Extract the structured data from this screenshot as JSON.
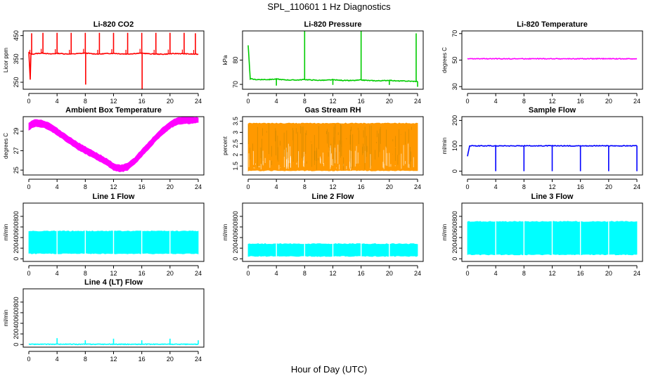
{
  "figure": {
    "title": "SPL_110601  1 Hz Diagnostics",
    "xlabel": "Hour of Day (UTC)"
  },
  "chart_data": [
    {
      "id": "co2",
      "type": "line",
      "title": "Li-820 CO2",
      "ylabel": "Licor ppm",
      "xlim": [
        0,
        24
      ],
      "ylim": [
        220,
        470
      ],
      "yticks": [
        250,
        350,
        450
      ],
      "xticks": [
        0,
        4,
        8,
        12,
        16,
        20,
        24
      ],
      "color": "#ff0000",
      "series": [
        {
          "x": [
            0,
            0.2,
            0.3,
            0.5,
            1,
            2,
            3,
            4,
            5,
            6,
            7,
            8,
            9,
            10,
            11,
            12,
            13,
            14,
            15,
            16,
            17,
            18,
            19,
            20,
            21,
            22,
            23,
            24
          ],
          "values": [
            380,
            260,
            372,
            370,
            373,
            375,
            371,
            374,
            372,
            371,
            373,
            375,
            372,
            371,
            373,
            374,
            372,
            371,
            373,
            375,
            372,
            371,
            370,
            372,
            373,
            372,
            371,
            370
          ]
        }
      ],
      "spikes": [
        {
          "x": 0.4,
          "value": 460
        },
        {
          "x": 2.0,
          "value": 462
        },
        {
          "x": 4.0,
          "value": 462
        },
        {
          "x": 6.0,
          "value": 462
        },
        {
          "x": 8.0,
          "value": 462
        },
        {
          "x": 8.05,
          "value": 240
        },
        {
          "x": 10.0,
          "value": 462
        },
        {
          "x": 12.0,
          "value": 462
        },
        {
          "x": 14.0,
          "value": 462
        },
        {
          "x": 16.0,
          "value": 462
        },
        {
          "x": 16.05,
          "value": 220
        },
        {
          "x": 18.0,
          "value": 462
        },
        {
          "x": 20.0,
          "value": 462
        },
        {
          "x": 22.0,
          "value": 462
        },
        {
          "x": 23.6,
          "value": 460
        }
      ]
    },
    {
      "id": "pressure",
      "type": "line",
      "title": "Li-820 Pressure",
      "ylabel": "kPa",
      "xlim": [
        0,
        24
      ],
      "ylim": [
        68,
        92
      ],
      "yticks": [
        70,
        80
      ],
      "xticks": [
        0,
        4,
        8,
        12,
        16,
        20,
        24
      ],
      "color": "#00cc00",
      "series": [
        {
          "x": [
            0,
            0.3,
            1,
            2,
            3,
            4,
            5,
            6,
            7,
            8,
            9,
            10,
            11,
            12,
            13,
            14,
            15,
            16,
            17,
            18,
            19,
            20,
            21,
            22,
            23,
            24
          ],
          "values": [
            86,
            72.3,
            72.0,
            72.0,
            72.0,
            72.2,
            71.9,
            71.8,
            71.8,
            72.0,
            71.8,
            71.7,
            71.7,
            71.9,
            71.7,
            71.6,
            71.6,
            71.8,
            71.6,
            71.5,
            71.5,
            71.7,
            71.4,
            71.4,
            71.3,
            71.2
          ]
        }
      ],
      "spikes": [
        {
          "x": 8.0,
          "value": 92
        },
        {
          "x": 16.0,
          "value": 92
        },
        {
          "x": 23.8,
          "value": 91
        },
        {
          "x": 4.0,
          "value": 69.5
        },
        {
          "x": 12.0,
          "value": 69.8
        },
        {
          "x": 20.0,
          "value": 69.8
        },
        {
          "x": 24.0,
          "value": 69
        }
      ]
    },
    {
      "id": "licor-temp",
      "type": "line",
      "title": "Li-820 Temperature",
      "ylabel": "degrees C",
      "xlim": [
        0,
        24
      ],
      "ylim": [
        28,
        72
      ],
      "yticks": [
        30,
        50,
        70
      ],
      "xticks": [
        0,
        4,
        8,
        12,
        16,
        20,
        24
      ],
      "color": "#ff00ff",
      "series": [
        {
          "x": [
            0,
            24
          ],
          "values": [
            51,
            51
          ]
        }
      ]
    },
    {
      "id": "ambient-temp",
      "type": "area",
      "title": "Ambient Box Temperature",
      "ylabel": "degrees C",
      "xlim": [
        0,
        24
      ],
      "ylim": [
        24.5,
        30.5
      ],
      "yticks": [
        25,
        27,
        29
      ],
      "xticks": [
        0,
        4,
        8,
        12,
        16,
        20,
        24
      ],
      "color": "#ff00ff",
      "series": [
        {
          "x": [
            0,
            0.5,
            1,
            2,
            3,
            4,
            5,
            6,
            7,
            8,
            9,
            10,
            11,
            12,
            13,
            14,
            15,
            16,
            17,
            18,
            19,
            20,
            21,
            22,
            23,
            24
          ],
          "low": [
            29.1,
            29.4,
            29.5,
            29.4,
            29.1,
            28.6,
            28.1,
            27.6,
            27.1,
            26.7,
            26.3,
            25.9,
            25.5,
            25.0,
            24.8,
            25.0,
            25.6,
            26.4,
            27.2,
            28.0,
            28.7,
            29.3,
            29.7,
            29.8,
            29.8,
            29.9
          ],
          "high": [
            29.8,
            30.1,
            30.2,
            30.1,
            29.8,
            29.3,
            28.8,
            28.3,
            27.8,
            27.4,
            27.0,
            26.6,
            26.2,
            25.7,
            25.5,
            25.7,
            26.3,
            27.1,
            27.9,
            28.7,
            29.4,
            30.0,
            30.4,
            30.5,
            30.5,
            30.4
          ]
        }
      ]
    },
    {
      "id": "gas-rh",
      "type": "area",
      "title": "Gas Stream RH",
      "ylabel": "percent",
      "xlim": [
        0,
        24
      ],
      "ylim": [
        1.1,
        3.7
      ],
      "yticks": [
        1.5,
        2.0,
        2.5,
        3.0,
        3.5
      ],
      "xticks": [
        0,
        4,
        8,
        12,
        16,
        20,
        24
      ],
      "color": "#ff9900",
      "series": [
        {
          "x": [
            0,
            24
          ],
          "low": [
            1.3,
            1.3
          ],
          "high": [
            3.4,
            3.4
          ]
        }
      ]
    },
    {
      "id": "sample-flow",
      "type": "line",
      "title": "Sample Flow",
      "ylabel": "ml/min",
      "xlim": [
        0,
        24
      ],
      "ylim": [
        -15,
        215
      ],
      "yticks": [
        0,
        100,
        200
      ],
      "xticks": [
        0,
        4,
        8,
        12,
        16,
        20,
        24
      ],
      "color": "#0000ff",
      "series": [
        {
          "x": [
            0,
            0.3,
            1,
            2,
            3,
            4,
            5,
            6,
            7,
            8,
            9,
            10,
            11,
            12,
            13,
            14,
            15,
            16,
            17,
            18,
            19,
            20,
            21,
            22,
            23,
            24
          ],
          "values": [
            60,
            100,
            100,
            100,
            100,
            100,
            100,
            100,
            100,
            100,
            100,
            100,
            100,
            100,
            100,
            100,
            100,
            100,
            100,
            100,
            100,
            100,
            100,
            100,
            100,
            100
          ]
        }
      ],
      "spikes": [
        {
          "x": 4.0,
          "value": 0
        },
        {
          "x": 8.0,
          "value": 0
        },
        {
          "x": 12.0,
          "value": 0
        },
        {
          "x": 16.0,
          "value": 0
        },
        {
          "x": 20.0,
          "value": 0
        },
        {
          "x": 24.0,
          "value": 0
        }
      ]
    },
    {
      "id": "line1-flow",
      "type": "area",
      "title": "Line 1 Flow",
      "ylabel": "ml/min",
      "xlim": [
        0,
        24
      ],
      "ylim": [
        -50,
        1050
      ],
      "yticks": [
        0,
        200,
        400,
        600,
        800
      ],
      "xticks": [
        0,
        4,
        8,
        12,
        16,
        20,
        24
      ],
      "color": "#00ffff",
      "series": [
        {
          "x": [
            0,
            24
          ],
          "low": [
            100,
            100
          ],
          "high": [
            520,
            520
          ]
        }
      ],
      "gaps": [
        4,
        8,
        12,
        16,
        20
      ]
    },
    {
      "id": "line2-flow",
      "type": "area",
      "title": "Line 2 Flow",
      "ylabel": "ml/min",
      "xlim": [
        0,
        24
      ],
      "ylim": [
        -50,
        1050
      ],
      "yticks": [
        0,
        200,
        400,
        600,
        800
      ],
      "xticks": [
        0,
        4,
        8,
        12,
        16,
        20,
        24
      ],
      "color": "#00ffff",
      "series": [
        {
          "x": [
            0,
            24
          ],
          "low": [
            50,
            50
          ],
          "high": [
            280,
            280
          ]
        }
      ],
      "gaps": [
        4,
        8,
        12,
        16,
        20
      ]
    },
    {
      "id": "line3-flow",
      "type": "area",
      "title": "Line 3 Flow",
      "ylabel": "ml/min",
      "xlim": [
        0,
        24
      ],
      "ylim": [
        -50,
        1050
      ],
      "yticks": [
        0,
        200,
        400,
        600,
        800
      ],
      "xticks": [
        0,
        4,
        8,
        12,
        16,
        20,
        24
      ],
      "color": "#00ffff",
      "series": [
        {
          "x": [
            0,
            24
          ],
          "low": [
            80,
            80
          ],
          "high": [
            700,
            700
          ]
        }
      ],
      "gaps": [
        4,
        8,
        12,
        16,
        20
      ]
    },
    {
      "id": "line4-flow",
      "type": "line",
      "title": "Line 4 (LT) Flow",
      "ylabel": "ml/min",
      "xlim": [
        0,
        24
      ],
      "ylim": [
        -50,
        1050
      ],
      "yticks": [
        0,
        200,
        400,
        600,
        800
      ],
      "xticks": [
        0,
        4,
        8,
        12,
        16,
        20,
        24
      ],
      "color": "#00ffff",
      "series": [
        {
          "x": [
            0,
            24
          ],
          "values": [
            5,
            5
          ]
        }
      ],
      "spikes": [
        {
          "x": 4.0,
          "value": 120
        },
        {
          "x": 8.0,
          "value": 80
        },
        {
          "x": 12.0,
          "value": 110
        },
        {
          "x": 16.0,
          "value": 80
        },
        {
          "x": 20.0,
          "value": 110
        },
        {
          "x": 24.0,
          "value": 80
        }
      ]
    }
  ]
}
